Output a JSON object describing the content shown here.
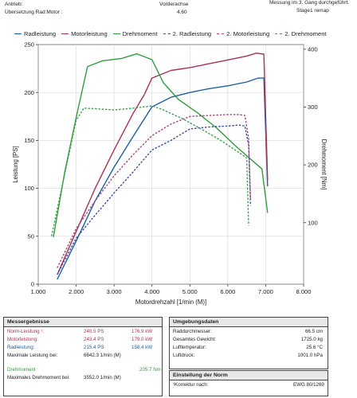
{
  "header": {
    "antrieb_label": "Antrieb:",
    "antrieb_value": "Vorderachse",
    "uebersetzung_label": "Übersetzung Rad:Motor :",
    "uebersetzung_value": "4.60",
    "messung": "Messung im 3. Gang durchgeführt.",
    "stage": "Stage1 remap"
  },
  "colors": {
    "radleistung": "#1f5fa0",
    "motorleistung": "#a8315a",
    "drehmoment": "#2e9e3e",
    "radleistung2": "#3a4f9a",
    "motorleistung2": "#a04a7a",
    "drehmoment2": "#3fa04a"
  },
  "chart_data": {
    "type": "line",
    "x_label": "Motordrehzahl [1/min (M)]",
    "y_label": "Leistung [PS]",
    "y2_label": "Drehmoment [Nm]",
    "x_ticks": [
      "1.000",
      "2.000",
      "3.000",
      "4.000",
      "5.000",
      "6.000",
      "7.000",
      "8.000"
    ],
    "y_ticks": [
      "0",
      "50",
      "100",
      "150",
      "200",
      "250"
    ],
    "y2_ticks": [
      "100",
      "200",
      "300",
      "400"
    ],
    "xlim": [
      1000,
      8000
    ],
    "ylim": [
      0,
      250
    ],
    "y2lim": [
      -6.35,
      408
    ],
    "grid": true,
    "legend_position": "top",
    "series": [
      {
        "name": "Radleistung",
        "axis": "left",
        "style": "solid",
        "color_key": "radleistung",
        "points": [
          [
            1500,
            5
          ],
          [
            2000,
            45
          ],
          [
            2500,
            87
          ],
          [
            3000,
            122
          ],
          [
            3500,
            154
          ],
          [
            4000,
            185
          ],
          [
            4500,
            195
          ],
          [
            5000,
            200
          ],
          [
            5500,
            204
          ],
          [
            6000,
            207
          ],
          [
            6500,
            211
          ],
          [
            6800,
            215
          ],
          [
            6950,
            215
          ],
          [
            7050,
            102
          ]
        ]
      },
      {
        "name": "Motorleistung",
        "axis": "left",
        "style": "solid",
        "color_key": "motorleistung",
        "points": [
          [
            1500,
            10
          ],
          [
            2000,
            55
          ],
          [
            2500,
            100
          ],
          [
            3000,
            140
          ],
          [
            3500,
            178
          ],
          [
            3800,
            198
          ],
          [
            4000,
            215
          ],
          [
            4500,
            223
          ],
          [
            5000,
            226
          ],
          [
            5500,
            230
          ],
          [
            6000,
            234
          ],
          [
            6500,
            238
          ],
          [
            6750,
            241
          ],
          [
            6950,
            240
          ],
          [
            7050,
            108
          ]
        ]
      },
      {
        "name": "Drehmoment",
        "axis": "right",
        "style": "solid",
        "color_key": "drehmoment",
        "points": [
          [
            1400,
            75
          ],
          [
            1700,
            188
          ],
          [
            2000,
            282
          ],
          [
            2300,
            370
          ],
          [
            2700,
            380
          ],
          [
            3200,
            384
          ],
          [
            3600,
            392
          ],
          [
            4000,
            382
          ],
          [
            4300,
            342
          ],
          [
            4700,
            313
          ],
          [
            5200,
            290
          ],
          [
            5700,
            264
          ],
          [
            6200,
            233
          ],
          [
            6600,
            210
          ],
          [
            6900,
            193
          ],
          [
            7050,
            117
          ]
        ]
      },
      {
        "name": "2. Radleistung",
        "axis": "left",
        "style": "dashed",
        "color_key": "radleistung2",
        "points": [
          [
            1500,
            10
          ],
          [
            2000,
            48
          ],
          [
            2500,
            72
          ],
          [
            3000,
            95
          ],
          [
            3500,
            117
          ],
          [
            4000,
            140
          ],
          [
            4500,
            150
          ],
          [
            5000,
            162
          ],
          [
            5500,
            164
          ],
          [
            6000,
            165
          ],
          [
            6300,
            166
          ],
          [
            6450,
            165
          ],
          [
            6550,
            145
          ],
          [
            6600,
            82
          ]
        ]
      },
      {
        "name": "2. Motorleistung",
        "axis": "left",
        "style": "dashed",
        "color_key": "motorleistung2",
        "points": [
          [
            1500,
            17
          ],
          [
            2000,
            58
          ],
          [
            2500,
            87
          ],
          [
            3000,
            113
          ],
          [
            3500,
            135
          ],
          [
            4000,
            155
          ],
          [
            4500,
            167
          ],
          [
            5000,
            175
          ],
          [
            5500,
            176
          ],
          [
            6000,
            177
          ],
          [
            6300,
            177
          ],
          [
            6450,
            176
          ],
          [
            6550,
            152
          ],
          [
            6600,
            88
          ]
        ]
      },
      {
        "name": "2. Drehmoment",
        "axis": "right",
        "style": "dashed",
        "color_key": "drehmoment2",
        "points": [
          [
            1350,
            77
          ],
          [
            1700,
            185
          ],
          [
            2000,
            277
          ],
          [
            2200,
            298
          ],
          [
            2500,
            297
          ],
          [
            3000,
            295
          ],
          [
            3500,
            298
          ],
          [
            4000,
            302
          ],
          [
            4300,
            295
          ],
          [
            4800,
            280
          ],
          [
            5300,
            262
          ],
          [
            5800,
            243
          ],
          [
            6300,
            221
          ],
          [
            6500,
            212
          ],
          [
            6550,
            95
          ]
        ]
      }
    ]
  },
  "results": {
    "title": "Messergebnisse",
    "rows": [
      {
        "label": "Norm-Leistung ¹:",
        "v1": "240.5 PS",
        "v2": "176.9 kW",
        "color_key": "motorleistung"
      },
      {
        "label": "Motorleistung:",
        "v1": "243.4 PS",
        "v2": "179.0 kW",
        "color_key": "motorleistung"
      },
      {
        "label": "Radleistung:",
        "v1": "215.4 PS",
        "v2": "158.4 kW",
        "color_key": "radleistung"
      },
      {
        "label": "Maximale Leistung bei:",
        "v1": "6642.3 1/min (M)",
        "v2": "",
        "color_key": ""
      }
    ],
    "torque_label": "Drehmoment",
    "torque_value": "205.7 Nm",
    "max_torque_label": "Maximales Drehmoment bei:",
    "max_torque_value": "3552.0 1/min (M)"
  },
  "environment": {
    "title": "Umgebungsdaten",
    "rows": [
      {
        "label": "Raddurchmesser:",
        "value": "66.5 cm"
      },
      {
        "label": "Gesamtes Gewicht:",
        "value": "1725.0 kg"
      },
      {
        "label": "Lufttemperatur:",
        "value": "25.6 °C"
      },
      {
        "label": "Luftdruck:",
        "value": "1001.0 hPa"
      }
    ],
    "norm_title": "Einstellung der Norm",
    "norm_label": "¹Korrektur nach:",
    "norm_value": "EWG 80/1269"
  }
}
